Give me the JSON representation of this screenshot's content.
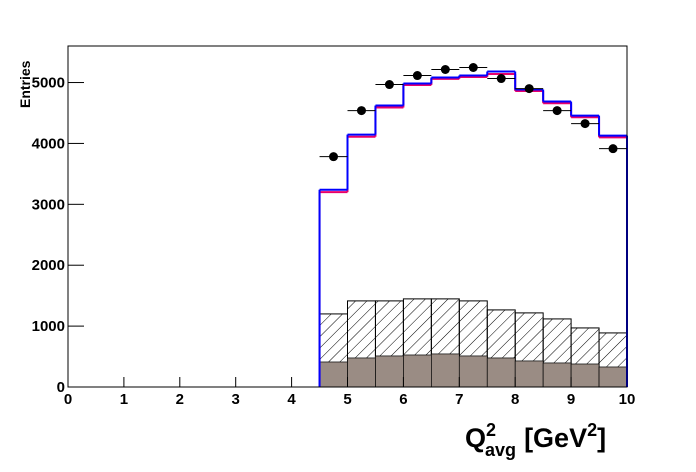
{
  "chart_data": {
    "type": "histogram",
    "y_label": "Entries",
    "x_label": {
      "base": "Q",
      "sup": "2",
      "sub": "avg",
      "unit": "[GeV",
      "unit_sup": "2",
      "close": "]"
    },
    "bins": [
      4.5,
      5,
      5.5,
      6,
      6.5,
      7,
      7.5,
      8,
      8.5,
      9,
      9.5,
      10
    ],
    "xlim": [
      0,
      10
    ],
    "ylim": [
      0,
      5600
    ],
    "xticks": [
      0,
      1,
      2,
      3,
      4,
      5,
      6,
      7,
      8,
      9,
      10
    ],
    "yticks": [
      0,
      1000,
      2000,
      3000,
      4000,
      5000
    ],
    "series": [
      {
        "style": "hatched",
        "color": "#000000",
        "values": [
          1200,
          1414,
          1414,
          1447,
          1447,
          1414,
          1266,
          1217,
          1118,
          970,
          888
        ]
      },
      {
        "style": "filled",
        "color": "#9a8c84",
        "values": [
          411,
          477,
          510,
          526,
          543,
          510,
          477,
          428,
          395,
          378,
          329
        ]
      },
      {
        "style": "step",
        "color": "#e8006a",
        "values": [
          3200,
          4110,
          4590,
          4960,
          5060,
          5090,
          5140,
          4860,
          4660,
          4430,
          4100
        ]
      },
      {
        "style": "step",
        "color": "#0000ff",
        "values": [
          3240,
          4145,
          4622,
          4984,
          5082,
          5115,
          5181,
          4885,
          4688,
          4457,
          4128
        ]
      },
      {
        "style": "points",
        "color": "#000000",
        "values": [
          3783,
          4539,
          4967,
          5115,
          5214,
          5247,
          5066,
          4901,
          4539,
          4326,
          3914
        ]
      }
    ]
  }
}
